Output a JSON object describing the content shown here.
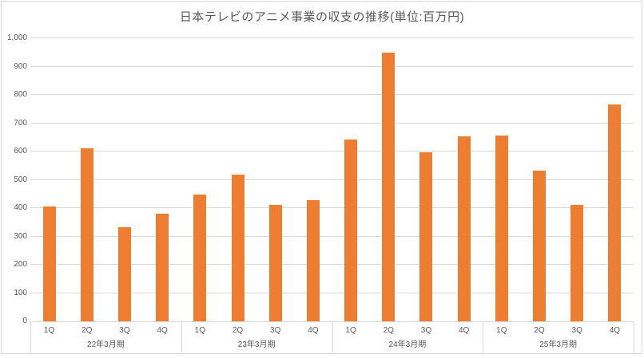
{
  "chart_data": {
    "type": "bar",
    "title": "日本テレビのアニメ事業の収支の推移(単位:百万円)",
    "categories": [
      "1Q",
      "2Q",
      "3Q",
      "4Q",
      "1Q",
      "2Q",
      "3Q",
      "4Q",
      "1Q",
      "2Q",
      "3Q",
      "4Q",
      "1Q",
      "2Q",
      "3Q",
      "4Q"
    ],
    "group_labels": [
      "22年3月期",
      "23年3月期",
      "24年3月期",
      "25年3月期"
    ],
    "groups": [
      {
        "label": "22年3月期",
        "categories": [
          "1Q",
          "2Q",
          "3Q",
          "4Q"
        ],
        "values": [
          405,
          610,
          333,
          380
        ]
      },
      {
        "label": "23年3月期",
        "categories": [
          "1Q",
          "2Q",
          "3Q",
          "4Q"
        ],
        "values": [
          447,
          517,
          412,
          427
        ]
      },
      {
        "label": "24年3月期",
        "categories": [
          "1Q",
          "2Q",
          "3Q",
          "4Q"
        ],
        "values": [
          643,
          948,
          597,
          653
        ]
      },
      {
        "label": "25年3月期",
        "categories": [
          "1Q",
          "2Q",
          "3Q",
          "4Q"
        ],
        "values": [
          657,
          532,
          412,
          765
        ]
      }
    ],
    "values": [
      405,
      610,
      333,
      380,
      447,
      517,
      412,
      427,
      643,
      948,
      597,
      653,
      657,
      532,
      412,
      765
    ],
    "ylim": [
      0,
      1000
    ],
    "ytick_step": 100,
    "ytick_labels": [
      "0",
      "100",
      "200",
      "300",
      "400",
      "500",
      "600",
      "700",
      "800",
      "900",
      "1,000"
    ],
    "grid": true,
    "legend": false,
    "bar_color": "#ED7D31",
    "gridline_color": "#D9D9D9",
    "axis_text_color": "#595959"
  }
}
